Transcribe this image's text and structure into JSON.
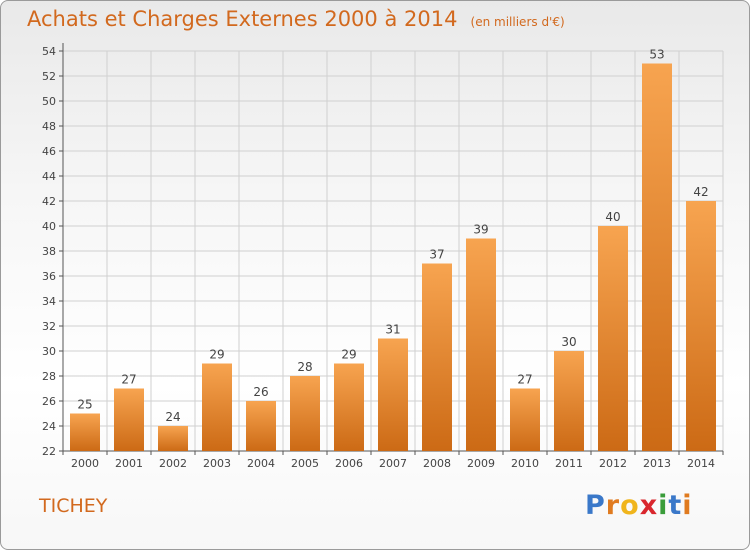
{
  "title": "Achats et Charges Externes 2000 à 2014",
  "unit": "(en milliers d'€)",
  "commune": "TICHEY",
  "logo": {
    "letters": [
      "P",
      "r",
      "o",
      "x",
      "i",
      "t",
      "i"
    ],
    "colors": [
      "#3a78c9",
      "#e07b20",
      "#f0b51c",
      "#d9262d",
      "#3a9c3a",
      "#3a78c9",
      "#e07b20"
    ]
  },
  "colors": {
    "bar_top": "#f7a450",
    "bar_bottom": "#cc6a15",
    "title": "#d2691e",
    "grid": "#d0d0d0"
  },
  "chart_data": {
    "type": "bar",
    "title": "Achats et Charges Externes 2000 à 2014",
    "subtitle": "(en milliers d'€)",
    "xlabel": "",
    "ylabel": "",
    "categories": [
      "2000",
      "2001",
      "2002",
      "2003",
      "2004",
      "2005",
      "2006",
      "2007",
      "2008",
      "2009",
      "2010",
      "2011",
      "2012",
      "2013",
      "2014"
    ],
    "values": [
      25,
      27,
      24,
      29,
      26,
      28,
      29,
      31,
      37,
      39,
      27,
      30,
      40,
      53,
      42
    ],
    "ylim": [
      22,
      54
    ],
    "yticks": [
      22,
      24,
      26,
      28,
      30,
      32,
      34,
      36,
      38,
      40,
      42,
      44,
      46,
      48,
      50,
      52,
      54
    ],
    "grid": true,
    "data_labels": true
  }
}
